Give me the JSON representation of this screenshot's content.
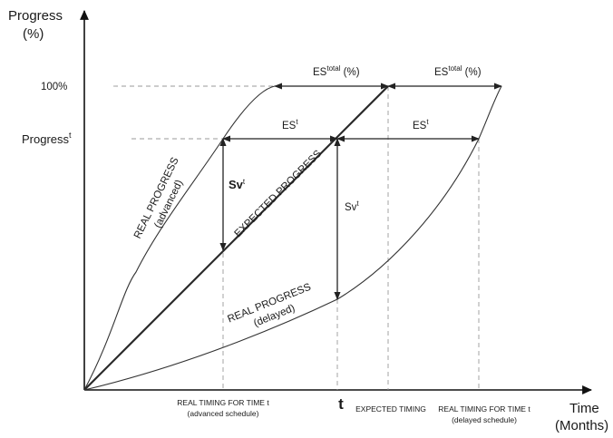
{
  "y_axis": {
    "title_line1": "Progress",
    "title_line2": "(%)"
  },
  "x_axis": {
    "title_line1": "Time",
    "title_line2": "(Months)"
  },
  "y_ticks": {
    "full": "100%",
    "progress_base": "Progress",
    "progress_sup": "t"
  },
  "x_ticks": {
    "t": "t",
    "advanced_line1": "REAL TIMING FOR TIME t",
    "advanced_line2": "(advanced schedule)",
    "expected": "EXPECTED TIMING",
    "delayed_line1": "REAL TIMING FOR TIME t",
    "delayed_line2": "(delayed schedule)"
  },
  "curves": {
    "advanced_line1": "REAL PROGRESS",
    "advanced_line2": "(advanced)",
    "expected": "EXPECTED PROGRESS",
    "delayed_line1": "REAL PROGRESS",
    "delayed_line2": "(delayed)"
  },
  "dimensions": {
    "es_total_base": "ES",
    "es_total_sup": "total",
    "es_total_unit": " (%)",
    "es_t_base": "ES",
    "es_t_sup": "t",
    "sv_base": "Sv",
    "sv_sup": "t"
  },
  "colors": {
    "line": "#333333",
    "guide": "#9a9a9a",
    "text": "#1a1a1a"
  }
}
